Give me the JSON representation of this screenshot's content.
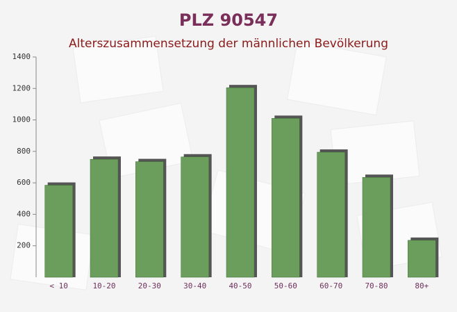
{
  "chart_data": {
    "type": "bar",
    "title": "PLZ 90547",
    "subtitle": "Alterszusammensetzung der männlichen Bevölkerung",
    "categories": [
      "< 10",
      "10-20",
      "20-30",
      "30-40",
      "40-50",
      "50-60",
      "60-70",
      "70-80",
      "80+"
    ],
    "values": [
      585,
      750,
      735,
      765,
      1205,
      1010,
      795,
      635,
      235
    ],
    "color": "#6b9e5c",
    "ylim": [
      0,
      1400
    ],
    "yticks": [
      200,
      400,
      600,
      800,
      1000,
      1200,
      1400
    ]
  }
}
